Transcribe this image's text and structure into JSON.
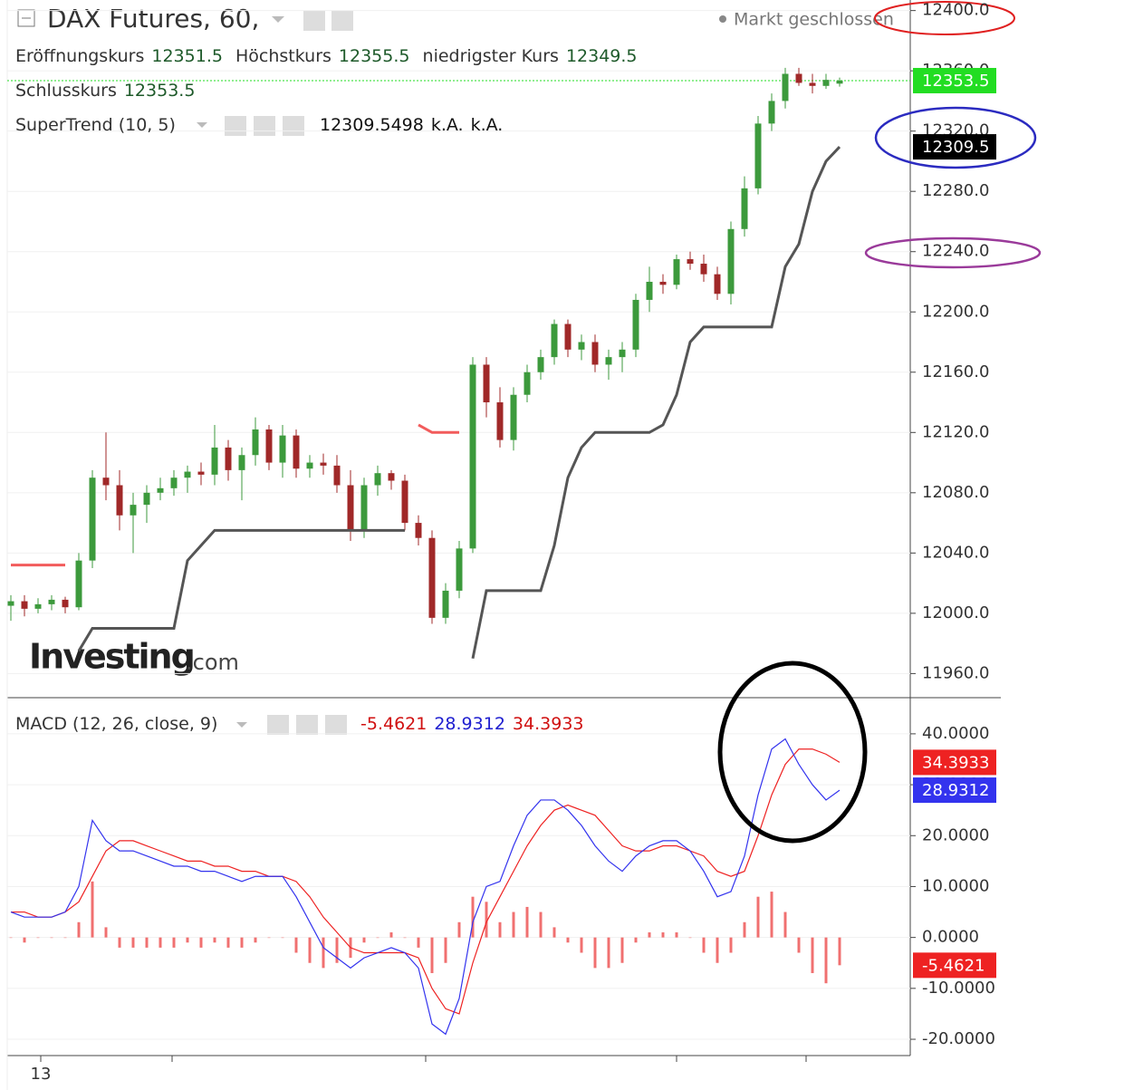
{
  "chart_data": [
    {
      "type": "candlestick",
      "title": "DAX Futures, 60,",
      "status": "Markt geschlossen",
      "ohlc_labels": [
        "Eröffnungskurs",
        "Höchstkurs",
        "niedrigster Kurs",
        "Schlusskurs"
      ],
      "open": [
        12005,
        12008,
        12003,
        12006,
        12009,
        12004,
        12035,
        12090,
        12085,
        12065,
        12072,
        12080,
        12083,
        12090,
        12094,
        12092,
        12110,
        12095,
        12105,
        12122,
        12100,
        12118,
        12096,
        12100,
        12098,
        12085,
        12055,
        12085,
        12093,
        12088,
        12060,
        12050,
        11997,
        12015,
        12043,
        12165,
        12140,
        12115,
        12145,
        12160,
        12170,
        12192,
        12175,
        12180,
        12165,
        12170,
        12175,
        12208,
        12220,
        12218,
        12235,
        12232,
        12225,
        12212,
        12255,
        12282,
        12325,
        12340,
        12358,
        12352,
        12350,
        12351.5
      ],
      "high": [
        12012,
        12012,
        12010,
        12012,
        12011,
        12040,
        12095,
        12120,
        12095,
        12080,
        12085,
        12090,
        12095,
        12098,
        12100,
        12125,
        12115,
        12110,
        12130,
        12125,
        12125,
        12122,
        12105,
        12106,
        12105,
        12095,
        12090,
        12098,
        12095,
        12092,
        12065,
        12055,
        12020,
        12048,
        12170,
        12170,
        12150,
        12150,
        12165,
        12175,
        12195,
        12195,
        12185,
        12185,
        12175,
        12180,
        12212,
        12230,
        12225,
        12238,
        12240,
        12238,
        12230,
        12260,
        12290,
        12330,
        12345,
        12362,
        12362,
        12358,
        12358,
        12355.5
      ],
      "low": [
        11995,
        11998,
        12000,
        12002,
        12000,
        12002,
        12030,
        12075,
        12055,
        12040,
        12060,
        12075,
        12078,
        12080,
        12085,
        12085,
        12088,
        12075,
        12098,
        12095,
        12090,
        12090,
        12090,
        12092,
        12080,
        12048,
        12050,
        12078,
        12082,
        12055,
        12045,
        11993,
        11993,
        12010,
        12040,
        12130,
        12110,
        12108,
        12140,
        12155,
        12165,
        12170,
        12168,
        12160,
        12155,
        12160,
        12170,
        12200,
        12212,
        12215,
        12228,
        12220,
        12208,
        12205,
        12250,
        12278,
        12320,
        12335,
        12350,
        12345,
        12348,
        12349.5
      ],
      "close": [
        12008,
        12003,
        12006,
        12009,
        12004,
        12035,
        12090,
        12085,
        12065,
        12072,
        12080,
        12083,
        12090,
        12094,
        12092,
        12110,
        12095,
        12105,
        12122,
        12100,
        12118,
        12096,
        12100,
        12098,
        12085,
        12055,
        12085,
        12093,
        12088,
        12060,
        12050,
        11997,
        12015,
        12043,
        12165,
        12140,
        12115,
        12145,
        12160,
        12170,
        12192,
        12175,
        12180,
        12165,
        12170,
        12175,
        12208,
        12220,
        12218,
        12235,
        12232,
        12225,
        12212,
        12255,
        12282,
        12325,
        12340,
        12358,
        12352,
        12350,
        12354,
        12353.5
      ],
      "up_color": "#3c9a3c",
      "down_color": "#a02828",
      "close_color": "#22dd22",
      "supertrend": {
        "label": "SuperTrend (10, 5)",
        "color": "#555555",
        "down_color": "#f25c5c",
        "values": [
          null,
          null,
          null,
          null,
          null,
          11975,
          11990,
          11990,
          11990,
          11990,
          11990,
          11990,
          11990,
          12035,
          12045,
          12055,
          12055,
          12055,
          12055,
          12055,
          12055,
          12055,
          12055,
          12055,
          12055,
          12055,
          12055,
          12055,
          12055,
          12055,
          null,
          null,
          null,
          null,
          11970,
          12015,
          12015,
          12015,
          12015,
          12015,
          12045,
          12090,
          12110,
          12120,
          12120,
          12120,
          12120,
          12120,
          12125,
          12145,
          12180,
          12190,
          12190,
          12190,
          12190,
          12190,
          12190,
          12230,
          12245,
          12280,
          12300,
          12309.5498
        ],
        "down_values": [
          12032,
          12032,
          12032,
          12032,
          12032,
          null,
          null,
          null,
          null,
          null,
          null,
          null,
          null,
          null,
          null,
          null,
          null,
          null,
          null,
          null,
          null,
          null,
          null,
          null,
          null,
          null,
          null,
          null,
          null,
          null,
          12125,
          12120,
          12120,
          12120,
          null,
          null,
          null,
          null,
          null,
          null,
          null,
          null,
          null,
          null,
          null,
          null,
          null,
          null,
          null,
          null,
          null,
          null,
          null,
          null,
          null,
          null,
          null,
          null,
          null,
          null,
          null,
          null
        ],
        "tag_label": "12309.5",
        "extra": [
          "k.A.",
          "k.A."
        ]
      },
      "ylim": [
        11944,
        12407
      ],
      "yticks": [
        {
          "value": 11960,
          "label": "11960.0"
        },
        {
          "value": 12000,
          "label": "12000.0"
        },
        {
          "value": 12040,
          "label": "12040.0"
        },
        {
          "value": 12080,
          "label": "12080.0"
        },
        {
          "value": 12120,
          "label": "12120.0"
        },
        {
          "value": 12160,
          "label": "12160.0"
        },
        {
          "value": 12200,
          "label": "12200.0"
        },
        {
          "value": 12240,
          "label": "12240.0"
        },
        {
          "value": 12280,
          "label": "12280.0"
        },
        {
          "value": 12320,
          "label": "12320.0"
        },
        {
          "value": 12360,
          "label": "12360.0"
        },
        {
          "value": 12400,
          "label": "12400.0"
        }
      ],
      "watermark": [
        "Investing",
        ".com"
      ],
      "x_label": "13"
    },
    {
      "type": "macd",
      "label": "MACD (12, 26, close, 9)",
      "ylim": [
        -23.2,
        47.1
      ],
      "yticks": [
        {
          "value": -20,
          "label": "-20.0000"
        },
        {
          "value": -10,
          "label": "-10.0000"
        },
        {
          "value": 0,
          "label": "0.0000"
        },
        {
          "value": 10,
          "label": "10.0000"
        },
        {
          "value": 20,
          "label": "20.0000"
        },
        {
          "value": 30,
          "label": "30.0000"
        },
        {
          "value": 40,
          "label": "40.0000"
        }
      ],
      "histogram": {
        "color": "#f07070",
        "values": [
          0,
          -1,
          0,
          0,
          0,
          3,
          11,
          2,
          -2,
          -2,
          -2,
          -2,
          -2,
          -1,
          -2,
          -1,
          -2,
          -2,
          -1,
          0,
          0,
          -3,
          -5,
          -6,
          -5,
          -4,
          -1,
          0,
          1,
          0,
          -2,
          -7,
          -5,
          3,
          8,
          7,
          3,
          5,
          6,
          5,
          2,
          -1,
          -3,
          -6,
          -6,
          -5,
          -1,
          1,
          1,
          1,
          0,
          -3,
          -5,
          -3,
          3,
          8,
          9,
          5,
          -3,
          -7,
          -9,
          -5.4621
        ]
      },
      "macd": {
        "color": "#3333ee",
        "values": [
          5,
          4,
          4,
          4,
          5,
          10,
          23,
          19,
          17,
          17,
          16,
          15,
          14,
          14,
          13,
          13,
          12,
          11,
          12,
          12,
          12,
          8,
          3,
          -2,
          -4,
          -6,
          -4,
          -3,
          -2,
          -3,
          -6,
          -17,
          -19,
          -12,
          3,
          10,
          11,
          18,
          24,
          27,
          27,
          25,
          22,
          18,
          15,
          13,
          16,
          18,
          19,
          19,
          17,
          13,
          8,
          9,
          16,
          28,
          37,
          39,
          34,
          30,
          27,
          28.9312
        ]
      },
      "signal": {
        "color": "#ee2222",
        "values": [
          5,
          5,
          4,
          4,
          5,
          7,
          12,
          17,
          19,
          19,
          18,
          17,
          16,
          15,
          15,
          14,
          14,
          13,
          13,
          12,
          12,
          11,
          8,
          4,
          1,
          -2,
          -3,
          -3,
          -3,
          -3,
          -4,
          -10,
          -14,
          -15,
          -5,
          3,
          8,
          13,
          18,
          22,
          25,
          26,
          25,
          24,
          21,
          18,
          17,
          17,
          18,
          18,
          17,
          16,
          13,
          12,
          13,
          20,
          28,
          34,
          37,
          37,
          36,
          34.3933
        ]
      }
    }
  ]
}
